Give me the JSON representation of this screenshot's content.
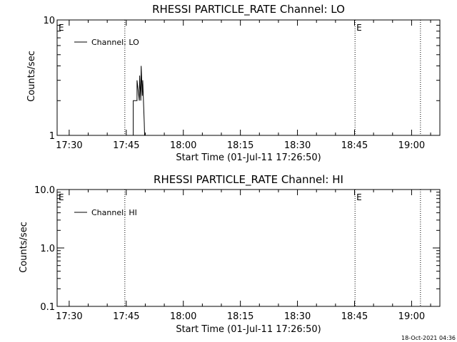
{
  "timestamp": "18-Oct-2021 04:36",
  "colors": {
    "background": "#ffffff",
    "foreground": "#000000"
  },
  "chart_data": [
    {
      "type": "line",
      "title": "RHESSI PARTICLE_RATE Channel: LO",
      "xlabel": "Start Time (01-Jul-11 17:26:50)",
      "ylabel": "Counts/sec",
      "x_unit": "minutes after 17:26:50",
      "xlim": [
        0,
        100.6
      ],
      "ylim": [
        1,
        10
      ],
      "y_scale": "log",
      "grid": false,
      "legend_position": "top-left",
      "x_ticks": [
        {
          "value": 3.17,
          "label": "17:30"
        },
        {
          "value": 18.17,
          "label": "17:45"
        },
        {
          "value": 33.17,
          "label": "18:00"
        },
        {
          "value": 48.17,
          "label": "18:15"
        },
        {
          "value": 63.17,
          "label": "18:30"
        },
        {
          "value": 78.17,
          "label": "18:45"
        },
        {
          "value": 93.17,
          "label": "19:00"
        }
      ],
      "y_ticks": [
        {
          "value": 1,
          "label": "1"
        },
        {
          "value": 10,
          "label": "10"
        }
      ],
      "event_markers": [
        {
          "x": 0,
          "label": "E",
          "dotted": false
        },
        {
          "x": 17.8,
          "label": "",
          "dotted": true
        },
        {
          "x": 78.3,
          "label": "E",
          "dotted": true
        },
        {
          "x": 95.5,
          "label": "",
          "dotted": true
        }
      ],
      "series": [
        {
          "name": "Channel: LO",
          "x": [
            20.0,
            20.0,
            21.0,
            21.0,
            21.6,
            21.7,
            22.0,
            22.1,
            22.4,
            22.5,
            22.7,
            22.9,
            23.0
          ],
          "y": [
            1.0,
            2.0,
            2.0,
            3.0,
            2.0,
            3.3,
            2.0,
            4.0,
            2.2,
            3.0,
            2.0,
            1.3,
            0.95
          ]
        }
      ]
    },
    {
      "type": "line",
      "title": "RHESSI PARTICLE_RATE Channel: HI",
      "xlabel": "Start Time (01-Jul-11 17:26:50)",
      "ylabel": "Counts/sec",
      "x_unit": "minutes after 17:26:50",
      "xlim": [
        0,
        100.6
      ],
      "ylim": [
        0.1,
        10
      ],
      "y_scale": "log",
      "grid": false,
      "legend_position": "top-left",
      "x_ticks": [
        {
          "value": 3.17,
          "label": "17:30"
        },
        {
          "value": 18.17,
          "label": "17:45"
        },
        {
          "value": 33.17,
          "label": "18:00"
        },
        {
          "value": 48.17,
          "label": "18:15"
        },
        {
          "value": 63.17,
          "label": "18:30"
        },
        {
          "value": 78.17,
          "label": "18:45"
        },
        {
          "value": 93.17,
          "label": "19:00"
        }
      ],
      "y_ticks": [
        {
          "value": 0.1,
          "label": "0.1"
        },
        {
          "value": 1,
          "label": "1.0"
        },
        {
          "value": 10,
          "label": "10.0"
        }
      ],
      "event_markers": [
        {
          "x": 0,
          "label": "E",
          "dotted": false
        },
        {
          "x": 17.8,
          "label": "",
          "dotted": true
        },
        {
          "x": 78.3,
          "label": "E",
          "dotted": true
        },
        {
          "x": 95.5,
          "label": "",
          "dotted": true
        }
      ],
      "series": [
        {
          "name": "Channel: HI",
          "x": [],
          "y": []
        }
      ]
    }
  ]
}
